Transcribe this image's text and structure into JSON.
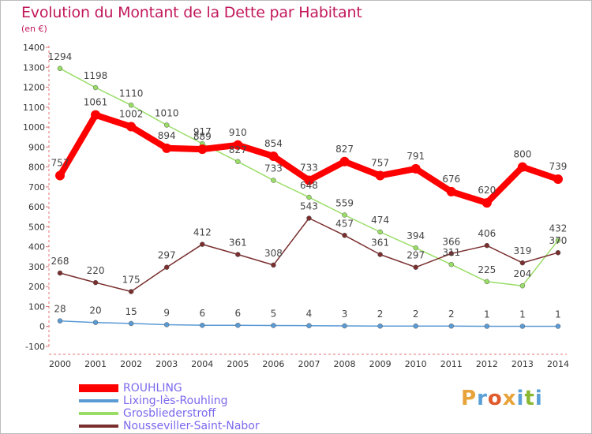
{
  "title": "Evolution du Montant de la Dette par Habitant",
  "unit": "(en €)",
  "brand": "Proxiti",
  "brand_colors": [
    "#e8a33a",
    "#5aa0d8",
    "#e05a2c",
    "#e8a33a",
    "#5aa0d8",
    "#8ab832",
    "#5aa0d8"
  ],
  "chart_data": {
    "type": "line",
    "x": [
      "2000",
      "2001",
      "2002",
      "2003",
      "2004",
      "2005",
      "2006",
      "2007",
      "2008",
      "2009",
      "2010",
      "2011",
      "2012",
      "2013",
      "2014"
    ],
    "ylim": [
      -100,
      1400
    ],
    "yticks": [
      "-100",
      "0",
      "100",
      "200",
      "300",
      "400",
      "500",
      "600",
      "700",
      "800",
      "900",
      "1000",
      "1100",
      "1200",
      "1300",
      "1400"
    ],
    "grid": false,
    "legend_placement": "bottom-left",
    "series": [
      {
        "name": "ROUHLING",
        "color": "#ff0000",
        "values": [
          757,
          1061,
          1002,
          894,
          889,
          910,
          854,
          733,
          827,
          757,
          791,
          676,
          620,
          800,
          739
        ],
        "labels": [
          "757",
          "1061",
          "1002",
          "894",
          "889",
          "910",
          "854",
          "733",
          "827",
          "757",
          "791",
          "676",
          "620",
          "800",
          "739"
        ]
      },
      {
        "name": "Lixing-lès-Rouhling",
        "color": "#5b9bd5",
        "values": [
          28,
          20,
          15,
          9,
          6,
          6,
          5,
          4,
          3,
          2,
          2,
          2,
          1,
          1,
          1
        ],
        "labels": [
          "28",
          "20",
          "15",
          "9",
          "6",
          "6",
          "5",
          "4",
          "3",
          "2",
          "2",
          "2",
          "1",
          "1",
          "1"
        ]
      },
      {
        "name": "Grosbliederstroff",
        "color": "#99dd66",
        "values": [
          1294,
          1198,
          1110,
          1010,
          917,
          827,
          733,
          648,
          559,
          474,
          394,
          311,
          225,
          204,
          432
        ],
        "labels": [
          "1294",
          "1198",
          "1110",
          "1010",
          "917",
          "827",
          "733",
          "648",
          "559",
          "474",
          "394",
          "311",
          "225",
          "204",
          "432"
        ]
      },
      {
        "name": "Nousseviller-Saint-Nabor",
        "color": "#7a2e2e",
        "values": [
          268,
          220,
          175,
          297,
          412,
          361,
          308,
          543,
          457,
          361,
          297,
          366,
          406,
          319,
          370
        ],
        "labels": [
          "268",
          "220",
          "175",
          "297",
          "412",
          "361",
          "308",
          "543",
          "457",
          "361",
          "297",
          "366",
          "406",
          "319",
          "370"
        ]
      }
    ]
  }
}
